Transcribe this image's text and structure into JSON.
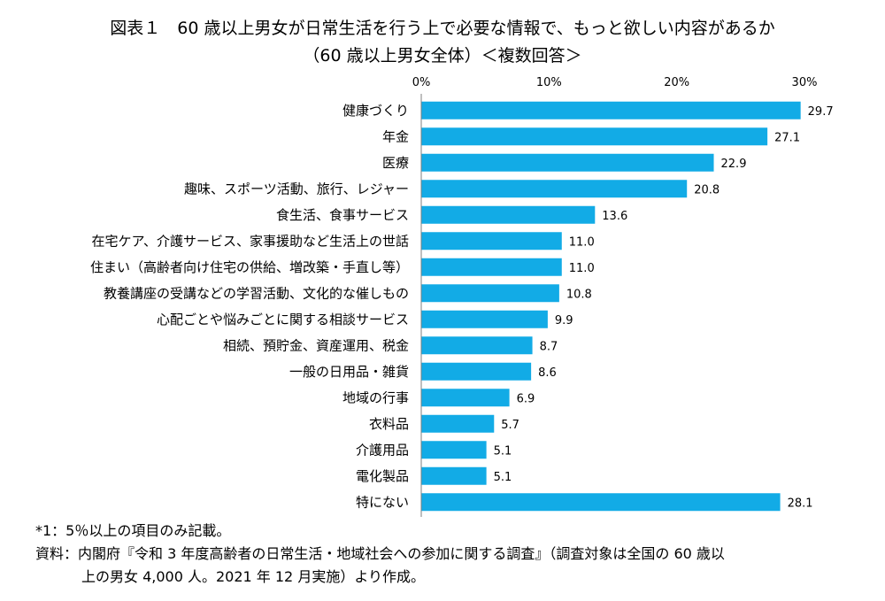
{
  "chart_data": {
    "type": "bar",
    "orientation": "horizontal",
    "title": "図表１　60 歳以上男女が日常生活を行う上で必要な情報で、もっと欲しい内容があるか",
    "subtitle": "（60 歳以上男女全体）＜複数回答＞",
    "x_ticks": [
      "0%",
      "10%",
      "20%",
      "30%"
    ],
    "xlim": [
      0,
      30
    ],
    "bar_color": "#12ABE6",
    "categories": [
      "健康づくり",
      "年金",
      "医療",
      "趣味、スポーツ活動、旅行、レジャー",
      "食生活、食事サービス",
      "在宅ケア、介護サービス、家事援助など生活上の世話",
      "住まい（高齢者向け住宅の供給、増改築・手直し等）",
      "教養講座の受講などの学習活動、文化的な催しもの",
      "心配ごとや悩みごとに関する相談サービス",
      "相続、預貯金、資産運用、税金",
      "一般の日用品・雑貨",
      "地域の行事",
      "衣料品",
      "介護用品",
      "電化製品",
      "特にない"
    ],
    "values": [
      29.7,
      27.1,
      22.9,
      20.8,
      13.6,
      11.0,
      11.0,
      10.8,
      9.9,
      8.7,
      8.6,
      6.9,
      5.7,
      5.1,
      5.1,
      28.1
    ],
    "value_labels": [
      "29.7",
      "27.1",
      "22.9",
      "20.8",
      "13.6",
      "11.0",
      "11.0",
      "10.8",
      "9.9",
      "8.7",
      "8.6",
      "6.9",
      "5.7",
      "5.1",
      "5.1",
      "28.1"
    ]
  },
  "notes": {
    "note1": "*1：5％以上の項目のみ記載。",
    "source_line1": "資料：内閣府『令和 3 年度高齢者の日常生活・地域社会への参加に関する調査』（調査対象は全国の 60 歳以",
    "source_line2": "上の男女 4,000 人。2021 年 12 月実施）より作成。"
  }
}
